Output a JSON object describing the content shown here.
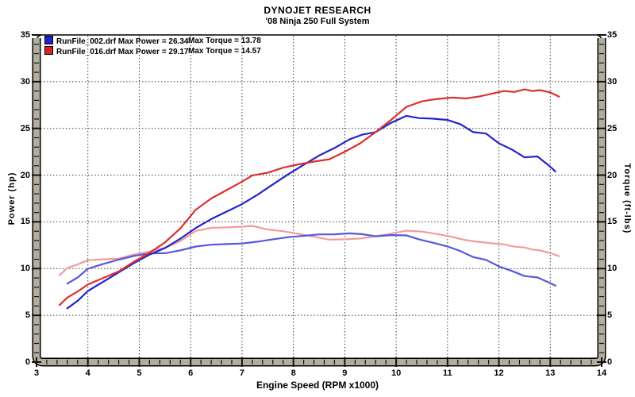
{
  "header": {
    "title": "DYNOJET RESEARCH",
    "subtitle": "'08 Ninja 250 Full System"
  },
  "legend": {
    "rows": [
      {
        "file_and_power": "RunFile_002.drf Max Power = 26.34",
        "max_torque": "Max Torque = 13.78",
        "color": "#2222cc"
      },
      {
        "file_and_power": "RunFile_016.drf Max Power = 29.17",
        "max_torque": "Max Torque = 14.57",
        "color": "#dd2222"
      }
    ]
  },
  "axis_titles": {
    "power": "Power (hp)",
    "torque": "Torque (ft-lbs)",
    "rpm": "Engine Speed (RPM x1000)"
  },
  "colors": {
    "frame_gray": "#b2ae9e",
    "gridline": "#3c3c3c",
    "background": "#ffffff",
    "blue_power": "#2424cc",
    "blue_torque": "#5858dc",
    "red_power": "#dc3030",
    "red_torque": "#f09c9c"
  },
  "chart_data": {
    "type": "line",
    "title": "DYNOJET RESEARCH",
    "subtitle": "'08 Ninja 250 Full System",
    "xlabel": "Engine Speed (RPM x1000)",
    "ylabel_left": "Power (hp)",
    "ylabel_right": "Torque (ft-lbs)",
    "xlim": [
      3,
      14
    ],
    "ylim": [
      0,
      35
    ],
    "x_ticks": [
      3,
      4,
      5,
      6,
      7,
      8,
      9,
      10,
      11,
      12,
      13,
      14
    ],
    "x_minor_step": 0.2,
    "y_ticks": [
      0,
      5,
      10,
      15,
      20,
      25,
      30,
      35
    ],
    "y_minor_step": 1,
    "x_gridlines": [
      4,
      5,
      6,
      7,
      8,
      9,
      10,
      11,
      12,
      13
    ],
    "y_gridlines": [
      5,
      10,
      15,
      20,
      25,
      30
    ],
    "grid_style": "dotted",
    "runs": [
      {
        "file": "RunFile_002.drf",
        "max_power": 26.34,
        "max_torque": 13.78,
        "color": "#2222cc"
      },
      {
        "file": "RunFile_016.drf",
        "max_power": 29.17,
        "max_torque": 14.57,
        "color": "#dd2222"
      }
    ],
    "series": [
      {
        "id": "red-torque-curve",
        "run": "RunFile_016.drf",
        "quantity": "torque-ft-lbs",
        "color": "#f09c9c",
        "points": [
          [
            3.45,
            9.29
          ],
          [
            3.6,
            10.07
          ],
          [
            3.8,
            10.44
          ],
          [
            4.0,
            10.9
          ],
          [
            4.3,
            10.99
          ],
          [
            4.6,
            11.07
          ],
          [
            4.9,
            11.52
          ],
          [
            5.2,
            11.82
          ],
          [
            5.5,
            12.22
          ],
          [
            5.8,
            12.95
          ],
          [
            6.1,
            14.03
          ],
          [
            6.4,
            14.36
          ],
          [
            6.7,
            14.42
          ],
          [
            7.0,
            14.48
          ],
          [
            7.2,
            14.57
          ],
          [
            7.5,
            14.18
          ],
          [
            7.8,
            14.0
          ],
          [
            8.1,
            13.71
          ],
          [
            8.4,
            13.41
          ],
          [
            8.7,
            13.1
          ],
          [
            9.0,
            13.13
          ],
          [
            9.3,
            13.22
          ],
          [
            9.6,
            13.46
          ],
          [
            9.9,
            13.74
          ],
          [
            10.2,
            14.06
          ],
          [
            10.5,
            13.96
          ],
          [
            10.8,
            13.69
          ],
          [
            11.1,
            13.39
          ],
          [
            11.35,
            13.05
          ],
          [
            11.6,
            12.86
          ],
          [
            11.85,
            12.72
          ],
          [
            12.1,
            12.59
          ],
          [
            12.3,
            12.34
          ],
          [
            12.5,
            12.26
          ],
          [
            12.65,
            12.04
          ],
          [
            12.8,
            11.94
          ],
          [
            13.0,
            11.66
          ],
          [
            13.17,
            11.33
          ]
        ]
      },
      {
        "id": "blue-torque-curve",
        "run": "RunFile_002.drf",
        "quantity": "torque-ft-lbs",
        "color": "#5858dc",
        "points": [
          [
            3.6,
            8.39
          ],
          [
            3.8,
            9.05
          ],
          [
            4.0,
            9.98
          ],
          [
            4.3,
            10.5
          ],
          [
            4.6,
            10.96
          ],
          [
            4.9,
            11.36
          ],
          [
            5.2,
            11.62
          ],
          [
            5.5,
            11.65
          ],
          [
            5.8,
            11.95
          ],
          [
            6.1,
            12.36
          ],
          [
            6.4,
            12.56
          ],
          [
            6.7,
            12.62
          ],
          [
            7.0,
            12.68
          ],
          [
            7.3,
            12.88
          ],
          [
            7.6,
            13.13
          ],
          [
            7.9,
            13.36
          ],
          [
            8.2,
            13.51
          ],
          [
            8.5,
            13.66
          ],
          [
            8.8,
            13.67
          ],
          [
            9.1,
            13.77
          ],
          [
            9.35,
            13.68
          ],
          [
            9.6,
            13.46
          ],
          [
            9.9,
            13.58
          ],
          [
            10.2,
            13.56
          ],
          [
            10.45,
            13.12
          ],
          [
            10.7,
            12.79
          ],
          [
            11.0,
            12.37
          ],
          [
            11.25,
            11.88
          ],
          [
            11.5,
            11.23
          ],
          [
            11.75,
            10.93
          ],
          [
            12.0,
            10.24
          ],
          [
            12.25,
            9.75
          ],
          [
            12.5,
            9.2
          ],
          [
            12.75,
            9.06
          ],
          [
            13.0,
            8.44
          ],
          [
            13.1,
            8.18
          ]
        ]
      },
      {
        "id": "blue-power-curve",
        "run": "RunFile_002.drf",
        "quantity": "power-hp",
        "color": "#2424cc",
        "points": [
          [
            3.6,
            5.75
          ],
          [
            3.8,
            6.55
          ],
          [
            4.0,
            7.6
          ],
          [
            4.3,
            8.6
          ],
          [
            4.6,
            9.6
          ],
          [
            4.9,
            10.6
          ],
          [
            5.2,
            11.5
          ],
          [
            5.5,
            12.2
          ],
          [
            5.8,
            13.2
          ],
          [
            6.1,
            14.35
          ],
          [
            6.4,
            15.3
          ],
          [
            6.7,
            16.1
          ],
          [
            7.0,
            16.9
          ],
          [
            7.3,
            17.9
          ],
          [
            7.6,
            19.0
          ],
          [
            7.9,
            20.1
          ],
          [
            8.2,
            21.1
          ],
          [
            8.5,
            22.1
          ],
          [
            8.8,
            22.9
          ],
          [
            9.1,
            23.85
          ],
          [
            9.35,
            24.35
          ],
          [
            9.6,
            24.6
          ],
          [
            9.9,
            25.6
          ],
          [
            10.2,
            26.34
          ],
          [
            10.45,
            26.1
          ],
          [
            10.7,
            26.05
          ],
          [
            11.0,
            25.9
          ],
          [
            11.25,
            25.45
          ],
          [
            11.5,
            24.6
          ],
          [
            11.75,
            24.45
          ],
          [
            12.0,
            23.4
          ],
          [
            12.25,
            22.75
          ],
          [
            12.5,
            21.9
          ],
          [
            12.75,
            22.0
          ],
          [
            13.0,
            20.9
          ],
          [
            13.1,
            20.4
          ]
        ]
      },
      {
        "id": "red-power-curve",
        "run": "RunFile_016.drf",
        "quantity": "power-hp",
        "color": "#dc3030",
        "points": [
          [
            3.45,
            6.1
          ],
          [
            3.6,
            6.9
          ],
          [
            3.8,
            7.55
          ],
          [
            4.0,
            8.3
          ],
          [
            4.3,
            9.0
          ],
          [
            4.6,
            9.7
          ],
          [
            4.9,
            10.75
          ],
          [
            5.2,
            11.7
          ],
          [
            5.5,
            12.8
          ],
          [
            5.8,
            14.3
          ],
          [
            6.1,
            16.3
          ],
          [
            6.4,
            17.5
          ],
          [
            6.7,
            18.4
          ],
          [
            7.0,
            19.3
          ],
          [
            7.2,
            19.97
          ],
          [
            7.5,
            20.25
          ],
          [
            7.8,
            20.8
          ],
          [
            8.1,
            21.15
          ],
          [
            8.4,
            21.45
          ],
          [
            8.7,
            21.7
          ],
          [
            9.0,
            22.5
          ],
          [
            9.3,
            23.4
          ],
          [
            9.6,
            24.6
          ],
          [
            9.9,
            25.9
          ],
          [
            10.2,
            27.3
          ],
          [
            10.5,
            27.9
          ],
          [
            10.8,
            28.15
          ],
          [
            11.1,
            28.3
          ],
          [
            11.35,
            28.2
          ],
          [
            11.6,
            28.4
          ],
          [
            11.85,
            28.7
          ],
          [
            12.1,
            29.0
          ],
          [
            12.3,
            28.9
          ],
          [
            12.5,
            29.17
          ],
          [
            12.65,
            29.0
          ],
          [
            12.8,
            29.1
          ],
          [
            13.0,
            28.85
          ],
          [
            13.17,
            28.4
          ]
        ]
      }
    ]
  }
}
